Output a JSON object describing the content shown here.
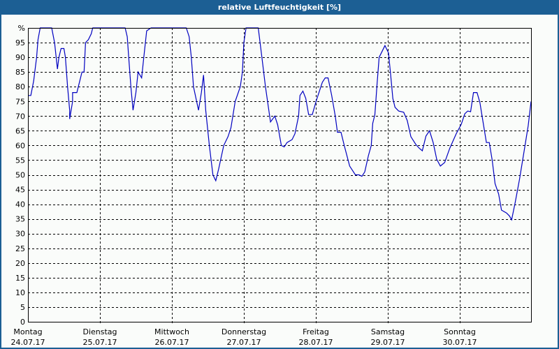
{
  "window": {
    "title": "relative Luftfeuchtigkeit [%]"
  },
  "chart_data": {
    "type": "line",
    "title": "relative Luftfeuchtigkeit [%]",
    "xlabel": "",
    "ylabel": "%",
    "ylim": [
      0,
      100
    ],
    "grid": true,
    "legend": null,
    "y_ticks": [
      "0",
      "5",
      "10",
      "15",
      "20",
      "25",
      "30",
      "35",
      "40",
      "45",
      "50",
      "55",
      "60",
      "65",
      "70",
      "75",
      "80",
      "85",
      "90",
      "95",
      "%"
    ],
    "x_ticks": [
      {
        "day": "Montag",
        "date": "24.07.17"
      },
      {
        "day": "Dienstag",
        "date": "25.07.17"
      },
      {
        "day": "Mittwoch",
        "date": "26.07.17"
      },
      {
        "day": "Donnerstag",
        "date": "27.07.17"
      },
      {
        "day": "Freitag",
        "date": "28.07.17"
      },
      {
        "day": "Samstag",
        "date": "29.07.17"
      },
      {
        "day": "Sonntag",
        "date": "30.07.17"
      }
    ],
    "x_unit": "days since 24.07.17 00:00",
    "series": [
      {
        "name": "relative Luftfeuchtigkeit",
        "color": "#0000c0",
        "points": [
          [
            0.0,
            77
          ],
          [
            0.04,
            77
          ],
          [
            0.08,
            82
          ],
          [
            0.12,
            90
          ],
          [
            0.14,
            96
          ],
          [
            0.17,
            100
          ],
          [
            0.33,
            100
          ],
          [
            0.37,
            95
          ],
          [
            0.41,
            86
          ],
          [
            0.43,
            90
          ],
          [
            0.46,
            93
          ],
          [
            0.5,
            93
          ],
          [
            0.52,
            90
          ],
          [
            0.55,
            80
          ],
          [
            0.58,
            72
          ],
          [
            0.58,
            69
          ],
          [
            0.62,
            75
          ],
          [
            0.62,
            78
          ],
          [
            0.68,
            78
          ],
          [
            0.72,
            82
          ],
          [
            0.75,
            85
          ],
          [
            0.78,
            85
          ],
          [
            0.79,
            90
          ],
          [
            0.8,
            95
          ],
          [
            0.84,
            96
          ],
          [
            0.88,
            98
          ],
          [
            0.9,
            100
          ],
          [
            1.35,
            100
          ],
          [
            1.38,
            97
          ],
          [
            1.4,
            90
          ],
          [
            1.43,
            80
          ],
          [
            1.46,
            72
          ],
          [
            1.5,
            78
          ],
          [
            1.53,
            85
          ],
          [
            1.58,
            83
          ],
          [
            1.61,
            90
          ],
          [
            1.65,
            99
          ],
          [
            1.71,
            100
          ],
          [
            2.2,
            100
          ],
          [
            2.24,
            97
          ],
          [
            2.27,
            90
          ],
          [
            2.3,
            80
          ],
          [
            2.37,
            72
          ],
          [
            2.41,
            78
          ],
          [
            2.44,
            84
          ],
          [
            2.47,
            72
          ],
          [
            2.52,
            60
          ],
          [
            2.57,
            50
          ],
          [
            2.61,
            48
          ],
          [
            2.65,
            52
          ],
          [
            2.72,
            60
          ],
          [
            2.78,
            63
          ],
          [
            2.82,
            66
          ],
          [
            2.88,
            75
          ],
          [
            2.95,
            80
          ],
          [
            2.98,
            85
          ],
          [
            3.0,
            95
          ],
          [
            3.03,
            100
          ],
          [
            3.2,
            100
          ],
          [
            3.25,
            90
          ],
          [
            3.3,
            80
          ],
          [
            3.37,
            68
          ],
          [
            3.43,
            70
          ],
          [
            3.47,
            67
          ],
          [
            3.52,
            60
          ],
          [
            3.56,
            59.5
          ],
          [
            3.6,
            61
          ],
          [
            3.67,
            62
          ],
          [
            3.71,
            64
          ],
          [
            3.76,
            70
          ],
          [
            3.78,
            77
          ],
          [
            3.82,
            78.5
          ],
          [
            3.86,
            76
          ],
          [
            3.9,
            70.5
          ],
          [
            3.95,
            70.5
          ],
          [
            4.01,
            75.5
          ],
          [
            4.09,
            81.5
          ],
          [
            4.13,
            83
          ],
          [
            4.17,
            83
          ],
          [
            4.22,
            77
          ],
          [
            4.27,
            70
          ],
          [
            4.3,
            64.5
          ],
          [
            4.35,
            64.5
          ],
          [
            4.4,
            59.5
          ],
          [
            4.47,
            53
          ],
          [
            4.55,
            50
          ],
          [
            4.6,
            50
          ],
          [
            4.64,
            49.5
          ],
          [
            4.68,
            51
          ],
          [
            4.73,
            56.5
          ],
          [
            4.77,
            60
          ],
          [
            4.79,
            67.5
          ],
          [
            4.82,
            70.5
          ],
          [
            4.85,
            80.5
          ],
          [
            4.88,
            90
          ],
          [
            4.92,
            92
          ],
          [
            4.96,
            94
          ],
          [
            5.01,
            91.5
          ],
          [
            5.04,
            84
          ],
          [
            5.07,
            76
          ],
          [
            5.1,
            73
          ],
          [
            5.15,
            71.7
          ],
          [
            5.22,
            71.3
          ],
          [
            5.27,
            68.5
          ],
          [
            5.32,
            63
          ],
          [
            5.39,
            60.3
          ],
          [
            5.44,
            59
          ],
          [
            5.48,
            58.2
          ],
          [
            5.53,
            63.2
          ],
          [
            5.58,
            65
          ],
          [
            5.63,
            61
          ],
          [
            5.68,
            55.3
          ],
          [
            5.73,
            53
          ],
          [
            5.79,
            54.2
          ],
          [
            5.86,
            59
          ],
          [
            5.95,
            64
          ],
          [
            6.02,
            67.2
          ],
          [
            6.07,
            70.8
          ],
          [
            6.11,
            71.7
          ],
          [
            6.15,
            71.5
          ],
          [
            6.19,
            78
          ],
          [
            6.24,
            78
          ],
          [
            6.28,
            74.6
          ],
          [
            6.32,
            68.4
          ],
          [
            6.37,
            61
          ],
          [
            6.41,
            61
          ],
          [
            6.45,
            55
          ],
          [
            6.49,
            47
          ],
          [
            6.54,
            43.5
          ],
          [
            6.58,
            38
          ],
          [
            6.65,
            37
          ],
          [
            6.69,
            36
          ],
          [
            6.72,
            34.7
          ],
          [
            6.77,
            40.6
          ],
          [
            6.83,
            48.5
          ],
          [
            6.9,
            59
          ],
          [
            6.95,
            66.7
          ],
          [
            6.99,
            75
          ]
        ]
      }
    ]
  },
  "colors": {
    "frame": "#1c5f94",
    "background": "#fafcfa",
    "line": "#0000c0",
    "grid": "#000000"
  }
}
